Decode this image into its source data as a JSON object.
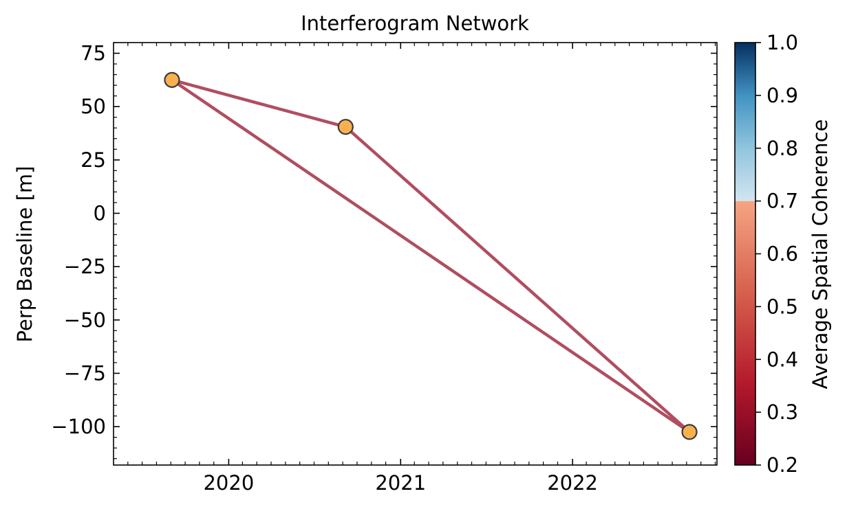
{
  "chart_data": {
    "type": "scatter",
    "title": "Interferogram Network",
    "xlabel": "",
    "ylabel": "Perp Baseline [m]",
    "xlim": [
      2019.33,
      2022.84
    ],
    "ylim": [
      -118,
      80
    ],
    "x_ticks": [
      2020,
      2021,
      2022
    ],
    "x_tick_labels": [
      "2020",
      "2021",
      "2022"
    ],
    "y_ticks": [
      75,
      50,
      25,
      0,
      -25,
      -50,
      -75,
      -100
    ],
    "y_tick_labels": [
      "75",
      "50",
      "25",
      "0",
      "−25",
      "−50",
      "−75",
      "−100"
    ],
    "grid": false,
    "acquisitions": [
      {
        "date": 2019.67,
        "perp_baseline": 62.5
      },
      {
        "date": 2020.68,
        "perp_baseline": 40.5
      },
      {
        "date": 2022.68,
        "perp_baseline": -102.5
      }
    ],
    "pairs": [
      {
        "from": 0,
        "to": 1,
        "coherence": 0.42
      },
      {
        "from": 0,
        "to": 2,
        "coherence": 0.42
      },
      {
        "from": 1,
        "to": 2,
        "coherence": 0.42
      }
    ],
    "colorbar": {
      "label": "Average Spatial Coherence",
      "range": [
        0.2,
        1.0
      ],
      "ticks": [
        0.2,
        0.3,
        0.4,
        0.5,
        0.6,
        0.7,
        0.8,
        0.9,
        1.0
      ],
      "tick_labels": [
        "0.2",
        "0.3",
        "0.4",
        "0.5",
        "0.6",
        "0.7",
        "0.8",
        "0.9",
        "1.0"
      ],
      "threshold": 0.7
    },
    "colors": {
      "edge": "#b04e61",
      "marker_fill": "#f9b04f",
      "marker_edge": "#3a3a3a"
    }
  }
}
